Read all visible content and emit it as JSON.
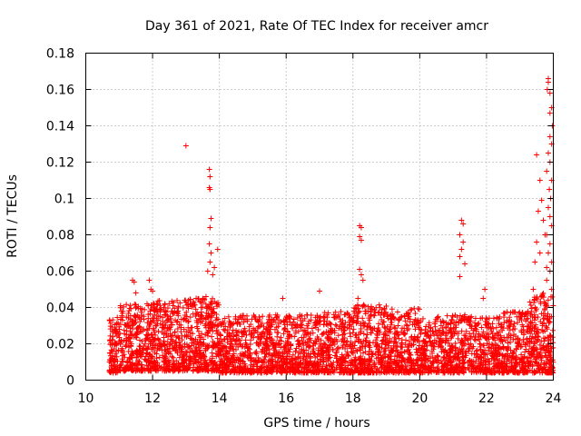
{
  "chart_data": {
    "type": "scatter",
    "title": "Day 361 of 2021, Rate Of TEC Index for receiver amcr",
    "xlabel": "GPS time / hours",
    "ylabel": "ROTI / TECUs",
    "xlim": [
      10,
      24
    ],
    "ylim": [
      0,
      0.18
    ],
    "x_ticks": [
      "10",
      "12",
      "14",
      "16",
      "18",
      "20",
      "22",
      "24"
    ],
    "y_ticks": [
      "0",
      "0.02",
      "0.04",
      "0.06",
      "0.08",
      "0.1",
      "0.12",
      "0.14",
      "0.16",
      "0.18"
    ],
    "grid": true,
    "marker": "+",
    "color": "#ff0000",
    "notable_points": [
      [
        13.0,
        0.129
      ],
      [
        13.7,
        0.116
      ],
      [
        13.72,
        0.112
      ],
      [
        13.7,
        0.106
      ],
      [
        13.72,
        0.105
      ],
      [
        13.75,
        0.089
      ],
      [
        13.72,
        0.084
      ],
      [
        13.7,
        0.075
      ],
      [
        13.75,
        0.07
      ],
      [
        13.95,
        0.072
      ],
      [
        13.72,
        0.065
      ],
      [
        13.85,
        0.062
      ],
      [
        13.65,
        0.06
      ],
      [
        13.6,
        0.046
      ],
      [
        13.8,
        0.058
      ],
      [
        11.4,
        0.055
      ],
      [
        11.45,
        0.054
      ],
      [
        11.5,
        0.048
      ],
      [
        11.9,
        0.055
      ],
      [
        11.95,
        0.05
      ],
      [
        12.0,
        0.049
      ],
      [
        17.0,
        0.049
      ],
      [
        15.9,
        0.045
      ],
      [
        18.2,
        0.085
      ],
      [
        18.25,
        0.084
      ],
      [
        18.2,
        0.079
      ],
      [
        18.25,
        0.077
      ],
      [
        18.2,
        0.061
      ],
      [
        18.25,
        0.058
      ],
      [
        18.3,
        0.055
      ],
      [
        18.15,
        0.045
      ],
      [
        21.25,
        0.088
      ],
      [
        21.3,
        0.086
      ],
      [
        21.2,
        0.08
      ],
      [
        21.3,
        0.076
      ],
      [
        21.25,
        0.072
      ],
      [
        21.2,
        0.068
      ],
      [
        21.35,
        0.064
      ],
      [
        21.2,
        0.057
      ],
      [
        21.95,
        0.05
      ],
      [
        21.9,
        0.045
      ],
      [
        23.5,
        0.124
      ],
      [
        23.6,
        0.11
      ],
      [
        23.65,
        0.099
      ],
      [
        23.55,
        0.093
      ],
      [
        23.7,
        0.088
      ],
      [
        23.75,
        0.08
      ],
      [
        23.5,
        0.076
      ],
      [
        23.6,
        0.07
      ],
      [
        23.45,
        0.065
      ],
      [
        23.8,
        0.062
      ],
      [
        23.3,
        0.043
      ],
      [
        23.4,
        0.05
      ],
      [
        23.85,
        0.166
      ],
      [
        23.85,
        0.164
      ],
      [
        23.9,
        0.158
      ],
      [
        23.82,
        0.16
      ],
      [
        23.95,
        0.15
      ],
      [
        23.9,
        0.147
      ],
      [
        23.97,
        0.14
      ],
      [
        23.9,
        0.134
      ],
      [
        23.95,
        0.13
      ],
      [
        23.85,
        0.125
      ],
      [
        23.9,
        0.12
      ],
      [
        23.8,
        0.115
      ],
      [
        23.95,
        0.11
      ],
      [
        23.88,
        0.105
      ],
      [
        23.92,
        0.1
      ],
      [
        23.85,
        0.095
      ],
      [
        23.9,
        0.09
      ],
      [
        23.95,
        0.085
      ],
      [
        23.8,
        0.08
      ],
      [
        23.9,
        0.075
      ],
      [
        23.85,
        0.07
      ],
      [
        23.95,
        0.065
      ],
      [
        23.9,
        0.06
      ],
      [
        23.8,
        0.055
      ],
      [
        23.95,
        0.05
      ]
    ],
    "density_bins": [
      {
        "x_range": [
          10.7,
          11.0
        ],
        "y_range": [
          0.004,
          0.035
        ],
        "count": 90
      },
      {
        "x_range": [
          11.0,
          12.0
        ],
        "y_range": [
          0.005,
          0.042
        ],
        "count": 320
      },
      {
        "x_range": [
          12.0,
          13.0
        ],
        "y_range": [
          0.005,
          0.044
        ],
        "count": 330
      },
      {
        "x_range": [
          13.0,
          14.0
        ],
        "y_range": [
          0.005,
          0.045
        ],
        "count": 330
      },
      {
        "x_range": [
          14.0,
          15.0
        ],
        "y_range": [
          0.004,
          0.036
        ],
        "count": 300
      },
      {
        "x_range": [
          15.0,
          16.0
        ],
        "y_range": [
          0.004,
          0.036
        ],
        "count": 300
      },
      {
        "x_range": [
          16.0,
          17.0
        ],
        "y_range": [
          0.004,
          0.036
        ],
        "count": 300
      },
      {
        "x_range": [
          17.0,
          18.0
        ],
        "y_range": [
          0.004,
          0.038
        ],
        "count": 300
      },
      {
        "x_range": [
          18.0,
          19.0
        ],
        "y_range": [
          0.004,
          0.042
        ],
        "count": 320
      },
      {
        "x_range": [
          19.0,
          20.0
        ],
        "y_range": [
          0.004,
          0.04
        ],
        "count": 310
      },
      {
        "x_range": [
          20.0,
          20.5
        ],
        "y_range": [
          0.004,
          0.034
        ],
        "count": 140
      },
      {
        "x_range": [
          20.5,
          21.5
        ],
        "y_range": [
          0.004,
          0.036
        ],
        "count": 290
      },
      {
        "x_range": [
          21.5,
          22.5
        ],
        "y_range": [
          0.004,
          0.035
        ],
        "count": 290
      },
      {
        "x_range": [
          22.5,
          23.3
        ],
        "y_range": [
          0.004,
          0.038
        ],
        "count": 250
      },
      {
        "x_range": [
          23.3,
          24.0
        ],
        "y_range": [
          0.004,
          0.048
        ],
        "count": 260
      }
    ]
  }
}
